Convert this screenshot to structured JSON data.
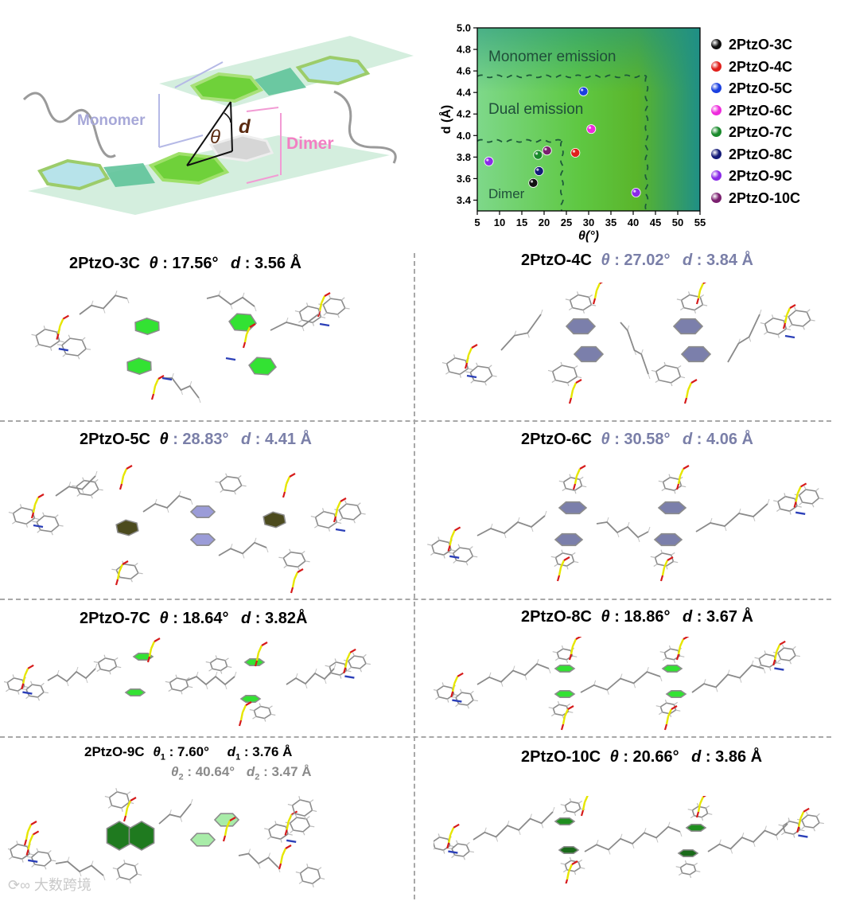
{
  "schematic": {
    "monomer_label": "Monomer",
    "dimer_label": "Dimer",
    "theta_symbol": "θ",
    "d_symbol": "d",
    "colors": {
      "monomer": "#a7a8d8",
      "dimer": "#f27fc3",
      "ring_green": "#6fd13a",
      "plane": "#cdebd8"
    }
  },
  "chart_data": {
    "type": "scatter",
    "xlabel": "θ(°)",
    "ylabel": "d (Å)",
    "xlim": [
      5,
      55
    ],
    "ylim": [
      3.3,
      5.0
    ],
    "x_ticks": [
      "5",
      "10",
      "15",
      "20",
      "25",
      "30",
      "35",
      "40",
      "45",
      "50",
      "55"
    ],
    "y_ticks": [
      "3.4",
      "3.6",
      "3.8",
      "4.0",
      "4.2",
      "4.4",
      "4.6",
      "4.8",
      "5.0"
    ],
    "regions": [
      {
        "label": "Monomer emission",
        "theta_min": 43,
        "d_min": 4.55
      },
      {
        "label": "Dual emission",
        "theta_max": 43,
        "d_max": 4.55
      },
      {
        "label": "Dimer",
        "theta_max": 24,
        "d_max": 3.95
      }
    ],
    "series": [
      {
        "name": "2PtzO-3C",
        "color": "#111111",
        "points": [
          {
            "x": 17.56,
            "y": 3.56
          }
        ]
      },
      {
        "name": "2PtzO-4C",
        "color": "#e0201c",
        "points": [
          {
            "x": 27.02,
            "y": 3.84
          }
        ]
      },
      {
        "name": "2PtzO-5C",
        "color": "#1a3fe0",
        "points": [
          {
            "x": 28.83,
            "y": 4.41
          }
        ]
      },
      {
        "name": "2PtzO-6C",
        "color": "#ee2bdc",
        "points": [
          {
            "x": 30.58,
            "y": 4.06
          }
        ]
      },
      {
        "name": "2PtzO-7C",
        "color": "#1a8a2c",
        "points": [
          {
            "x": 18.64,
            "y": 3.82
          }
        ]
      },
      {
        "name": "2PtzO-8C",
        "color": "#141b78",
        "points": [
          {
            "x": 18.86,
            "y": 3.67
          }
        ]
      },
      {
        "name": "2PtzO-9C",
        "color": "#8a2be8",
        "points": [
          {
            "x": 7.6,
            "y": 3.76
          },
          {
            "x": 40.64,
            "y": 3.47
          }
        ]
      },
      {
        "name": "2PtzO-10C",
        "color": "#7a1f6e",
        "points": [
          {
            "x": 20.66,
            "y": 3.86
          }
        ]
      }
    ],
    "legend": "right"
  },
  "panels": [
    {
      "id": "3C",
      "name": "2PtzO-3C",
      "theta_sym": "θ",
      "theta_val": ": 17.56°",
      "d_sym": "d",
      "d_val": ":  3.56 Å",
      "ring_color": "#33e233"
    },
    {
      "id": "4C",
      "name": "2PtzO-4C",
      "theta_sym": "θ",
      "theta_val": ": 27.02°",
      "d_sym": "d",
      "d_val": ":  3.84 Å",
      "ring_color": "#7b7fab"
    },
    {
      "id": "5C",
      "name": "2PtzO-5C",
      "theta_sym": "θ",
      "theta_val": ": 28.83°",
      "d_sym": "d",
      "d_val": ":  4.41 Å",
      "ring_color": "#9b9cd8"
    },
    {
      "id": "6C",
      "name": "2PtzO-6C",
      "theta_sym": "θ",
      "theta_val": ": 30.58°",
      "d_sym": "d",
      "d_val": ":  4.06 Å",
      "ring_color": "#7b7fab"
    },
    {
      "id": "7C",
      "name": "2PtzO-7C",
      "theta_sym": "θ",
      "theta_val": ": 18.64°",
      "d_sym": "d",
      "d_val": ":  3.82Å",
      "ring_color": "#33e233"
    },
    {
      "id": "8C",
      "name": "2PtzO-8C",
      "theta_sym": "θ",
      "theta_val": ": 18.86°",
      "d_sym": "d",
      "d_val": ":  3.67 Å",
      "ring_color": "#33e233"
    },
    {
      "id": "9C",
      "name": "2PtzO-9C",
      "theta1_sym": "θ",
      "theta1_sub": "1",
      "theta1_val": ": 7.60°",
      "d1_sym": "d",
      "d1_sub": "1",
      "d1_val": ": 3.76 Å",
      "theta2_sym": "θ",
      "theta2_sub": "2",
      "theta2_val": ": 40.64°",
      "d2_sym": "d",
      "d2_sub": "2",
      "d2_val": ": 3.47 Å",
      "ring_color": "#1f7a1f"
    },
    {
      "id": "10C",
      "name": "2PtzO-10C",
      "theta_sym": "θ",
      "theta_val": ": 20.66°",
      "d_sym": "d",
      "d_val": ":  3.86 Å",
      "ring_color": "#1f8f1f"
    }
  ],
  "watermark": "大数跨境"
}
